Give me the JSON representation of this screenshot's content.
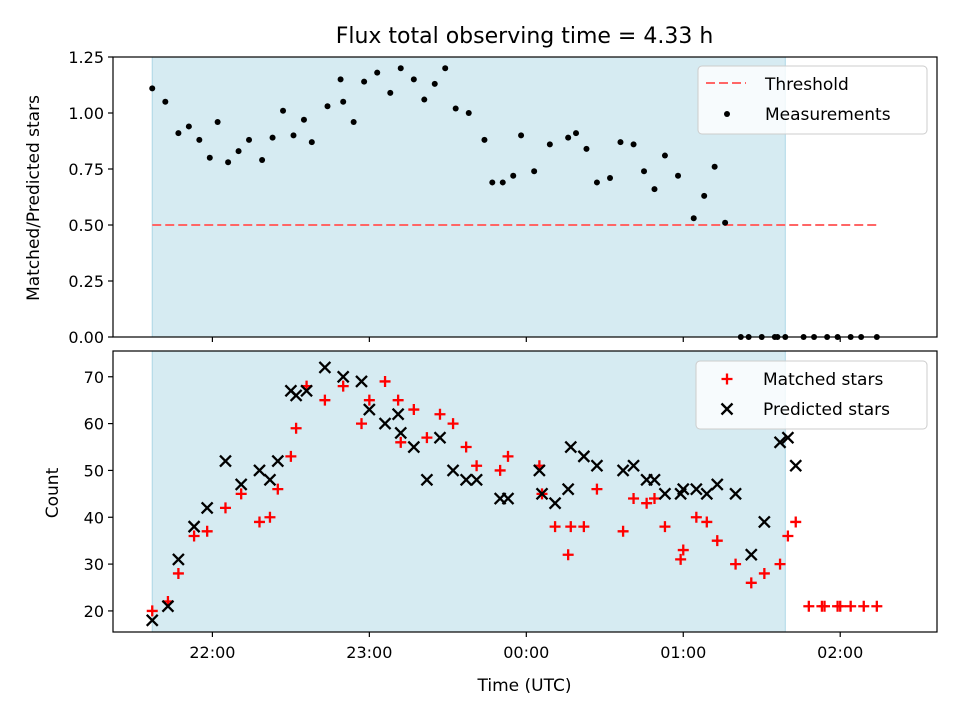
{
  "title": "Flux total observing time = 4.33 h",
  "colors": {
    "shade": "#add8e6",
    "threshold": "#ff6666",
    "measure": "#000000",
    "matched": "#ff0000",
    "predicted": "#000000"
  },
  "chart_data": [
    {
      "type": "scatter",
      "ylabel": "Matched/Predicted stars",
      "ylim": [
        0,
        1.25
      ],
      "yticks": [
        "0.00",
        "0.25",
        "0.50",
        "0.75",
        "1.00",
        "1.25"
      ],
      "xlim": [
        "21:22",
        "02:37"
      ],
      "shaded_span": [
        "21:37",
        "01:39"
      ],
      "threshold": {
        "value": 0.5,
        "x_range": [
          "21:37",
          "02:14"
        ]
      },
      "legend": {
        "position": "top-right",
        "entries": [
          "Threshold",
          "Measurements"
        ]
      },
      "series": [
        {
          "name": "Measurements",
          "x": [
            "21:37",
            "21:42",
            "21:47",
            "21:51",
            "21:55",
            "21:59",
            "22:02",
            "22:06",
            "22:10",
            "22:14",
            "22:19",
            "22:23",
            "22:27",
            "22:31",
            "22:35",
            "22:38",
            "22:44",
            "22:49",
            "22:50",
            "22:54",
            "22:58",
            "23:03",
            "23:08",
            "23:12",
            "23:17",
            "23:21",
            "23:25",
            "23:29",
            "23:33",
            "23:38",
            "23:44",
            "23:47",
            "23:51",
            "23:55",
            "23:58",
            "00:03",
            "00:09",
            "00:16",
            "00:19",
            "00:23",
            "00:27",
            "00:32",
            "00:36",
            "00:41",
            "00:45",
            "00:49",
            "00:53",
            "00:58",
            "01:04",
            "01:08",
            "01:12",
            "01:16",
            "01:22",
            "01:25",
            "01:30",
            "01:35",
            "01:36",
            "01:39",
            "01:46",
            "01:50",
            "01:55",
            "01:59",
            "02:04",
            "02:08",
            "02:14"
          ],
          "y": [
            1.11,
            1.05,
            0.91,
            0.94,
            0.88,
            0.8,
            0.96,
            0.78,
            0.83,
            0.88,
            0.79,
            0.89,
            1.01,
            0.9,
            0.97,
            0.87,
            1.03,
            1.15,
            1.05,
            0.96,
            1.14,
            1.18,
            1.09,
            1.2,
            1.15,
            1.06,
            1.13,
            1.2,
            1.02,
            1.0,
            0.88,
            0.69,
            0.69,
            0.72,
            0.9,
            0.74,
            0.86,
            0.89,
            0.91,
            0.84,
            0.69,
            0.71,
            0.87,
            0.86,
            0.74,
            0.66,
            0.81,
            0.72,
            0.53,
            0.63,
            0.76,
            0.51,
            0.0,
            0.0,
            0.0,
            0.0,
            0.0,
            0.0,
            0.0,
            0.0,
            0.0,
            0.0,
            0.0,
            0.0,
            0.0
          ]
        }
      ]
    },
    {
      "type": "scatter",
      "xlabel": "Time (UTC)",
      "ylabel": "Count",
      "ylim": [
        15.5,
        75.5
      ],
      "yticks": [
        "20",
        "30",
        "40",
        "50",
        "60",
        "70"
      ],
      "xticks": [
        "22:00",
        "23:00",
        "00:00",
        "01:00",
        "02:00"
      ],
      "xlim": [
        "21:22",
        "02:37"
      ],
      "shaded_span": [
        "21:37",
        "01:39"
      ],
      "legend": {
        "position": "top-right",
        "entries": [
          "Matched stars",
          "Predicted stars"
        ]
      },
      "series": [
        {
          "name": "Matched stars",
          "x": [
            "21:37",
            "21:43",
            "21:47",
            "21:53",
            "21:58",
            "22:05",
            "22:11",
            "22:18",
            "22:22",
            "22:25",
            "22:30",
            "22:32",
            "22:36",
            "22:43",
            "22:50",
            "22:57",
            "23:00",
            "23:06",
            "23:11",
            "23:12",
            "23:17",
            "23:22",
            "23:27",
            "23:32",
            "23:37",
            "23:41",
            "23:50",
            "23:53",
            "00:05",
            "00:06",
            "00:11",
            "00:16",
            "00:17",
            "00:22",
            "00:27",
            "00:37",
            "00:41",
            "00:46",
            "00:49",
            "00:53",
            "00:59",
            "01:00",
            "01:05",
            "01:09",
            "01:13",
            "01:20",
            "01:26",
            "01:31",
            "01:37",
            "01:40",
            "01:43",
            "01:48",
            "01:53",
            "01:54",
            "01:59",
            "02:00",
            "02:04",
            "02:09",
            "02:14"
          ],
          "y": [
            20,
            22,
            28,
            36,
            37,
            42,
            45,
            39,
            40,
            46,
            53,
            59,
            68,
            65,
            68,
            60,
            65,
            69,
            65,
            56,
            63,
            57,
            62,
            60,
            55,
            51,
            50,
            53,
            51,
            45,
            38,
            32,
            38,
            38,
            46,
            37,
            44,
            43,
            44,
            38,
            31,
            33,
            40,
            39,
            35,
            30,
            26,
            28,
            30,
            36,
            39,
            21,
            21,
            21,
            21,
            21,
            21,
            21,
            21
          ]
        },
        {
          "name": "Predicted stars",
          "x": [
            "21:37",
            "21:43",
            "21:47",
            "21:53",
            "21:58",
            "22:05",
            "22:11",
            "22:18",
            "22:22",
            "22:25",
            "22:30",
            "22:32",
            "22:36",
            "22:43",
            "22:50",
            "22:57",
            "23:00",
            "23:06",
            "23:11",
            "23:12",
            "23:17",
            "23:22",
            "23:27",
            "23:32",
            "23:37",
            "23:41",
            "23:50",
            "23:53",
            "00:05",
            "00:06",
            "00:11",
            "00:16",
            "00:17",
            "00:22",
            "00:27",
            "00:37",
            "00:41",
            "00:46",
            "00:49",
            "00:53",
            "00:59",
            "01:00",
            "01:05",
            "01:09",
            "01:13",
            "01:20",
            "01:26",
            "01:31",
            "01:37",
            "01:40",
            "01:43"
          ],
          "y": [
            18,
            21,
            31,
            38,
            42,
            52,
            47,
            50,
            48,
            52,
            67,
            66,
            67,
            72,
            70,
            69,
            63,
            60,
            62,
            58,
            55,
            48,
            57,
            50,
            48,
            48,
            44,
            44,
            50,
            45,
            43,
            46,
            55,
            53,
            51,
            50,
            51,
            48,
            48,
            45,
            45,
            46,
            46,
            45,
            47,
            45,
            32,
            39,
            56,
            57,
            51
          ]
        }
      ]
    }
  ],
  "legend_labels": {
    "threshold": "Threshold",
    "measurements": "Measurements",
    "matched": "Matched stars",
    "predicted": "Predicted stars"
  }
}
